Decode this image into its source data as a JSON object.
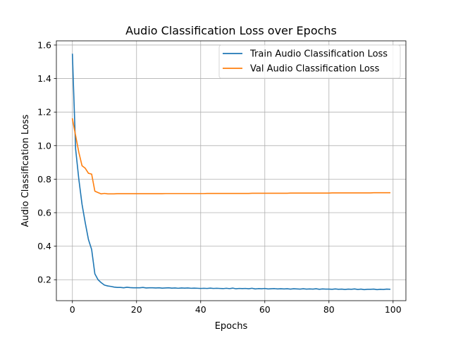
{
  "chart_data": {
    "type": "line",
    "title": "Audio Classification Loss over Epochs",
    "xlabel": "Epochs",
    "ylabel": "Audio Classification Loss",
    "xlim": [
      -5,
      104
    ],
    "ylim": [
      0.075,
      1.625
    ],
    "xticks": [
      0,
      20,
      40,
      60,
      80,
      100
    ],
    "yticks": [
      0.2,
      0.4,
      0.6,
      0.8,
      1.0,
      1.2,
      1.4,
      1.6
    ],
    "grid": true,
    "legend_position": "upper right",
    "x": [
      0,
      1,
      2,
      3,
      4,
      5,
      6,
      7,
      8,
      9,
      10,
      11,
      12,
      13,
      14,
      15,
      16,
      17,
      18,
      19,
      20,
      21,
      22,
      23,
      24,
      25,
      26,
      27,
      28,
      29,
      30,
      31,
      32,
      33,
      34,
      35,
      36,
      37,
      38,
      39,
      40,
      41,
      42,
      43,
      44,
      45,
      46,
      47,
      48,
      49,
      50,
      51,
      52,
      53,
      54,
      55,
      56,
      57,
      58,
      59,
      60,
      61,
      62,
      63,
      64,
      65,
      66,
      67,
      68,
      69,
      70,
      71,
      72,
      73,
      74,
      75,
      76,
      77,
      78,
      79,
      80,
      81,
      82,
      83,
      84,
      85,
      86,
      87,
      88,
      89,
      90,
      91,
      92,
      93,
      94,
      95,
      96,
      97,
      98,
      99
    ],
    "series": [
      {
        "name": "Train Audio Classification Loss",
        "color": "#1f77b4",
        "values": [
          1.545,
          0.98,
          0.8,
          0.65,
          0.54,
          0.44,
          0.38,
          0.235,
          0.2,
          0.182,
          0.168,
          0.163,
          0.16,
          0.156,
          0.154,
          0.154,
          0.152,
          0.155,
          0.153,
          0.152,
          0.152,
          0.152,
          0.154,
          0.151,
          0.152,
          0.152,
          0.151,
          0.152,
          0.15,
          0.151,
          0.152,
          0.15,
          0.151,
          0.149,
          0.151,
          0.15,
          0.151,
          0.149,
          0.15,
          0.149,
          0.148,
          0.149,
          0.148,
          0.15,
          0.148,
          0.149,
          0.148,
          0.147,
          0.149,
          0.147,
          0.15,
          0.146,
          0.148,
          0.147,
          0.148,
          0.146,
          0.149,
          0.145,
          0.147,
          0.146,
          0.148,
          0.145,
          0.146,
          0.147,
          0.145,
          0.146,
          0.145,
          0.146,
          0.144,
          0.146,
          0.145,
          0.144,
          0.146,
          0.144,
          0.145,
          0.144,
          0.146,
          0.143,
          0.145,
          0.144,
          0.144,
          0.143,
          0.145,
          0.143,
          0.144,
          0.142,
          0.144,
          0.143,
          0.145,
          0.142,
          0.144,
          0.141,
          0.143,
          0.143,
          0.144,
          0.141,
          0.143,
          0.142,
          0.144,
          0.143
        ]
      },
      {
        "name": "Val Audio Classification Loss",
        "color": "#ff7f0e",
        "values": [
          1.16,
          1.06,
          0.96,
          0.88,
          0.865,
          0.835,
          0.83,
          0.728,
          0.72,
          0.712,
          0.715,
          0.712,
          0.712,
          0.712,
          0.713,
          0.713,
          0.713,
          0.713,
          0.713,
          0.713,
          0.713,
          0.713,
          0.713,
          0.713,
          0.713,
          0.713,
          0.713,
          0.713,
          0.713,
          0.714,
          0.714,
          0.714,
          0.714,
          0.714,
          0.714,
          0.714,
          0.714,
          0.714,
          0.714,
          0.714,
          0.714,
          0.714,
          0.715,
          0.715,
          0.715,
          0.715,
          0.715,
          0.715,
          0.715,
          0.715,
          0.715,
          0.715,
          0.715,
          0.715,
          0.715,
          0.715,
          0.716,
          0.716,
          0.716,
          0.716,
          0.716,
          0.716,
          0.716,
          0.716,
          0.716,
          0.716,
          0.716,
          0.716,
          0.717,
          0.717,
          0.717,
          0.717,
          0.717,
          0.717,
          0.717,
          0.717,
          0.717,
          0.717,
          0.717,
          0.717,
          0.717,
          0.718,
          0.718,
          0.718,
          0.718,
          0.718,
          0.718,
          0.718,
          0.718,
          0.718,
          0.718,
          0.718,
          0.718,
          0.718,
          0.719,
          0.719,
          0.719,
          0.719,
          0.719,
          0.719
        ]
      }
    ]
  }
}
